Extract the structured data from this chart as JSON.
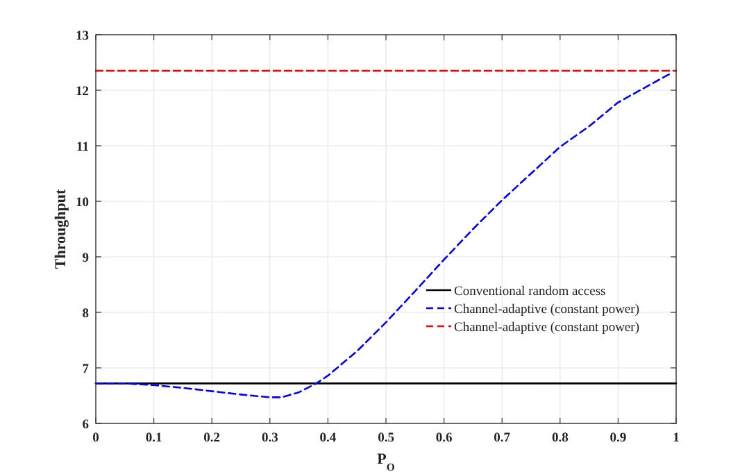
{
  "chart_data": {
    "type": "line",
    "xlabel": "P$_{O}$",
    "ylabel": "Throughput",
    "xlim": [
      0,
      1
    ],
    "ylim": [
      6,
      13
    ],
    "xticks": [
      0,
      0.1,
      0.2,
      0.3,
      0.4,
      0.5,
      0.6,
      0.7,
      0.8,
      0.9,
      1
    ],
    "yticks": [
      6,
      7,
      8,
      9,
      10,
      11,
      12,
      13
    ],
    "grid": true,
    "legend": "bottom right",
    "series": [
      {
        "name": "Conventional random access",
        "color": "#000000",
        "line_style": "solid",
        "x": [
          0,
          1
        ],
        "values": [
          6.72,
          6.72
        ]
      },
      {
        "name": "Channel-adaptive (constant power)",
        "color": "#0000ff",
        "line_style": "dashed",
        "x": [
          0,
          0.05,
          0.1,
          0.15,
          0.2,
          0.25,
          0.3,
          0.32,
          0.35,
          0.38,
          0.4,
          0.45,
          0.5,
          0.55,
          0.6,
          0.65,
          0.7,
          0.75,
          0.8,
          0.85,
          0.9,
          0.95,
          0.99
        ],
        "values": [
          6.72,
          6.72,
          6.69,
          6.64,
          6.58,
          6.52,
          6.47,
          6.47,
          6.56,
          6.72,
          6.86,
          7.3,
          7.82,
          8.38,
          8.95,
          9.5,
          10.02,
          10.5,
          10.98,
          11.35,
          11.78,
          12.07,
          12.3
        ]
      },
      {
        "name": "Channel-adaptive (constant power)",
        "color": "#ff0000",
        "line_style": "dashed",
        "x": [
          0,
          1
        ],
        "values": [
          12.35,
          12.35
        ]
      }
    ]
  }
}
